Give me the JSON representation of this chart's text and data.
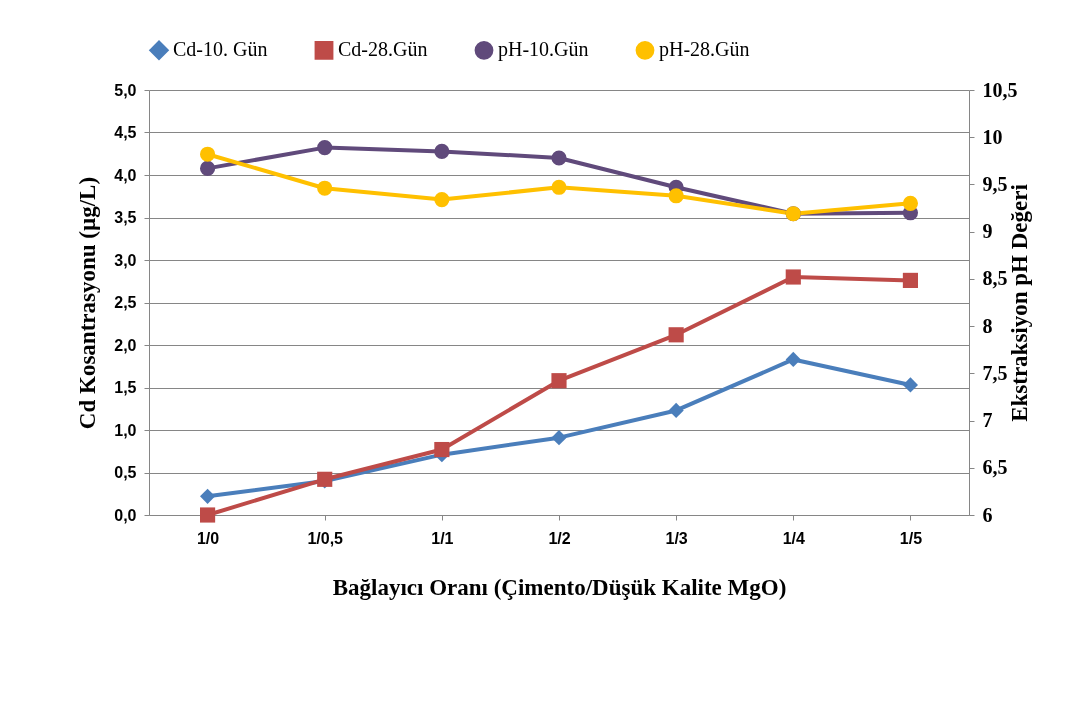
{
  "chart_data": {
    "type": "line",
    "xlabel": "Bağlayıcı Oranı (Çimento/Düşük Kalite MgO)",
    "ylabel": "Cd Kosantrasyonu (µg/L)",
    "y2label": "Ekstraksiyon pH Değeri",
    "categories": [
      "1/0",
      "1/0,5",
      "1/1",
      "1/2",
      "1/3",
      "1/4",
      "1/5"
    ],
    "series": [
      {
        "name": "Cd-10. Gün",
        "color": "#4a7ebb",
        "marker": "diamond",
        "values": [
          0.22,
          0.4,
          0.71,
          0.91,
          1.23,
          1.83,
          1.53
        ]
      },
      {
        "name": "Cd-28.Gün",
        "color": "#be4b48",
        "marker": "square",
        "values": [
          0.0,
          0.42,
          0.77,
          1.58,
          2.12,
          2.8,
          2.76
        ]
      },
      {
        "name": "pH-10.Gün",
        "color": "#604a7b",
        "marker": "circle",
        "axis": "y2",
        "values": [
          9.67,
          9.89,
          9.85,
          9.78,
          9.47,
          9.19,
          9.2
        ]
      },
      {
        "name": "pH-28.Gün",
        "color": "#ffc000",
        "marker": "circle",
        "axis": "y2",
        "values": [
          9.82,
          9.46,
          9.34,
          9.47,
          9.38,
          9.19,
          9.3
        ]
      }
    ],
    "ylim": [
      0,
      5
    ],
    "yticks": [
      {
        "value": 0,
        "label": "0,0"
      },
      {
        "value": 0.5,
        "label": "0,5"
      },
      {
        "value": 1,
        "label": "1,0"
      },
      {
        "value": 1.5,
        "label": "1,5"
      },
      {
        "value": 2,
        "label": "2,0"
      },
      {
        "value": 2.5,
        "label": "2,5"
      },
      {
        "value": 3,
        "label": "3,0"
      },
      {
        "value": 3.5,
        "label": "3,5"
      },
      {
        "value": 4,
        "label": "4,0"
      },
      {
        "value": 4.5,
        "label": "4,5"
      },
      {
        "value": 5,
        "label": "5,0"
      }
    ],
    "y2lim": [
      6,
      10.5
    ],
    "y2ticks": [
      6,
      {
        "value": 6.5,
        "label": "6,5"
      },
      7,
      {
        "value": 7.5,
        "label": "7,5"
      },
      8,
      {
        "value": 8.5,
        "label": "8,5"
      },
      9,
      {
        "value": 9.5,
        "label": "9,5"
      },
      10,
      {
        "value": 10.5,
        "label": "10,5"
      }
    ],
    "grid": "y",
    "legend": "top",
    "line_style": "solid"
  }
}
